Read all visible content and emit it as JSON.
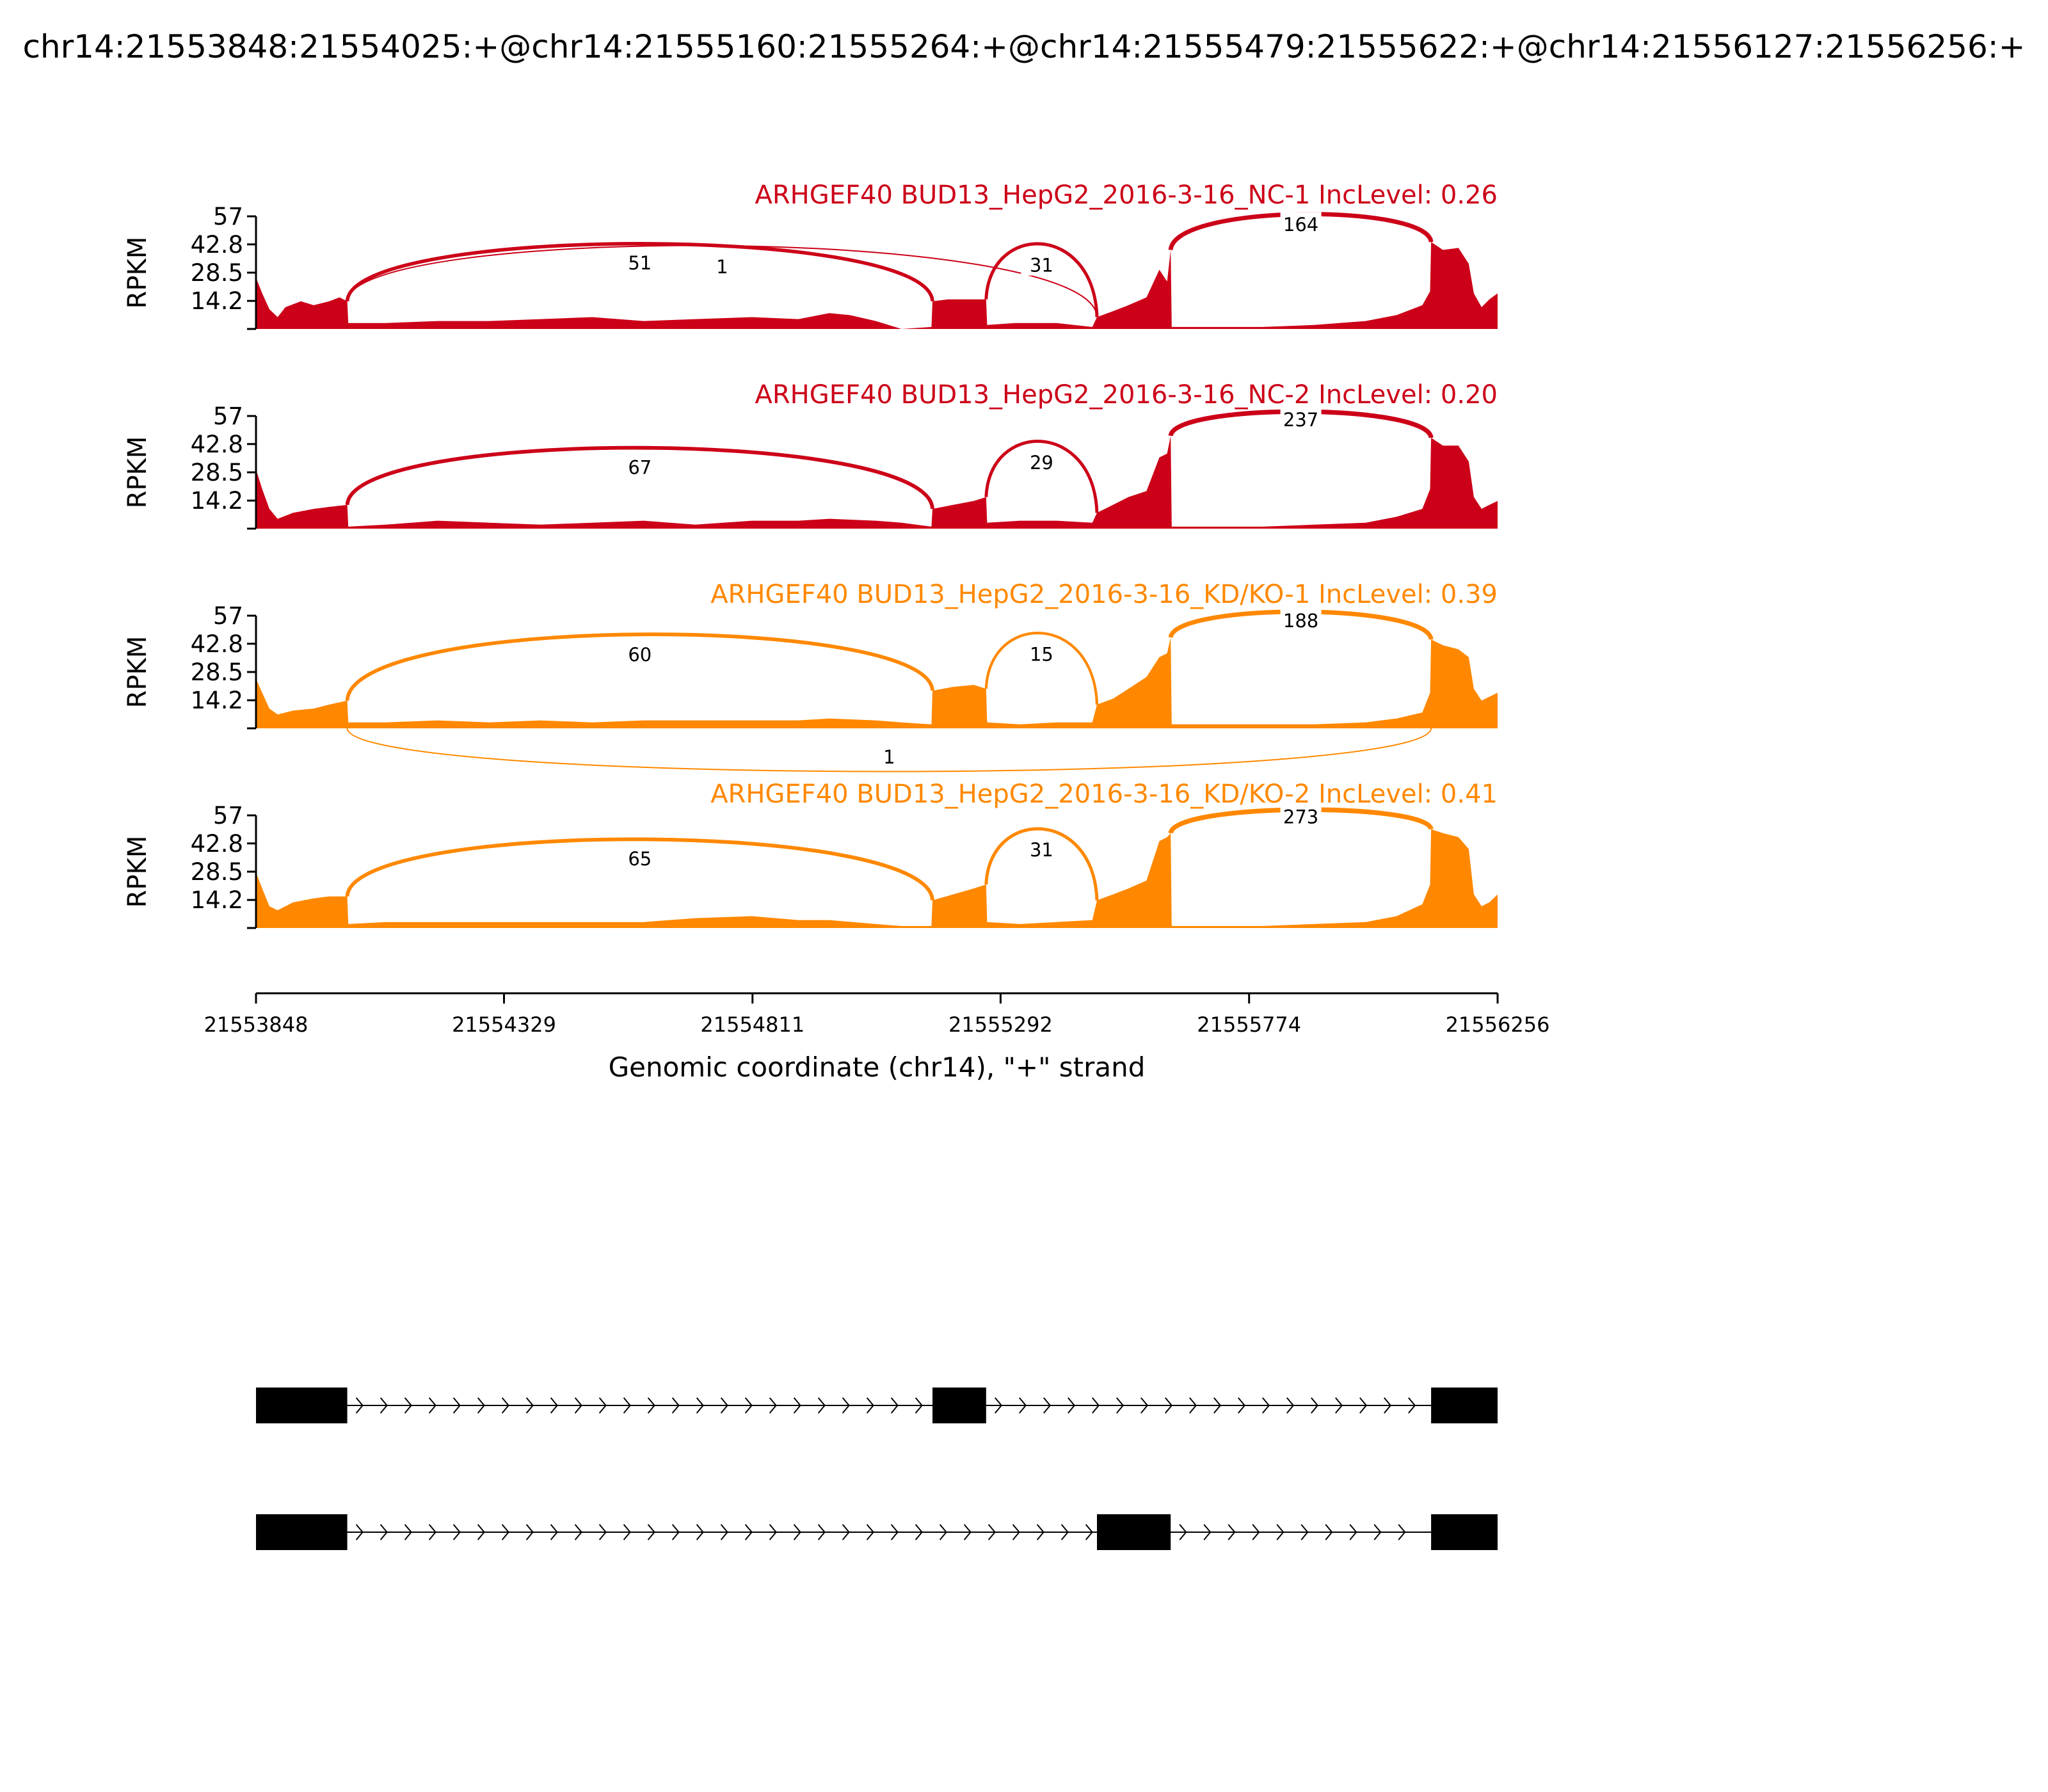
{
  "figure": {
    "title": "chr14:21553848:21554025:+@chr14:21555160:21555264:+@chr14:21555479:21555622:+@chr14:21556127:21556256:+",
    "xlabel": "Genomic coordinate (chr14), \"+\" strand"
  },
  "colors": {
    "nc": "#cc0018",
    "kd": "#ff8800",
    "axis": "#000000",
    "exon": "#000000"
  },
  "chart_data": {
    "type": "area",
    "chart_kind": "sashimi",
    "x_range": [
      21553848,
      21556256
    ],
    "x_ticks": [
      21553848,
      21554329,
      21554811,
      21555292,
      21555774,
      21556256
    ],
    "x_tick_labels": [
      "21553848",
      "21554329",
      "21554811",
      "21555292",
      "21555774",
      "21556256"
    ],
    "y_range": [
      0,
      57
    ],
    "y_ticks": [
      14.2,
      28.5,
      42.8,
      57
    ],
    "y_tick_labels": [
      "14.2",
      "28.5",
      "42.8",
      "57"
    ],
    "ylabel": "RPKM",
    "panels": [
      {
        "title": "ARHGEF40 BUD13_HepG2_2016-3-16_NC-1 IncLevel: 0.26",
        "group": "nc",
        "coverage": [
          [
            21553848,
            26
          ],
          [
            21553860,
            18
          ],
          [
            21553874,
            10
          ],
          [
            21553890,
            6
          ],
          [
            21553905,
            11
          ],
          [
            21553935,
            14
          ],
          [
            21553960,
            12
          ],
          [
            21553990,
            14
          ],
          [
            21554010,
            16
          ],
          [
            21554025,
            14
          ],
          [
            21554027,
            3
          ],
          [
            21554100,
            3
          ],
          [
            21554200,
            4
          ],
          [
            21554300,
            4
          ],
          [
            21554400,
            5
          ],
          [
            21554500,
            6
          ],
          [
            21554600,
            4
          ],
          [
            21554700,
            5
          ],
          [
            21554810,
            6
          ],
          [
            21554900,
            5
          ],
          [
            21554960,
            8
          ],
          [
            21555000,
            7
          ],
          [
            21555050,
            4
          ],
          [
            21555100,
            0
          ],
          [
            21555158,
            1
          ],
          [
            21555160,
            14
          ],
          [
            21555190,
            15
          ],
          [
            21555230,
            15
          ],
          [
            21555264,
            15
          ],
          [
            21555266,
            2
          ],
          [
            21555320,
            3
          ],
          [
            21555400,
            3
          ],
          [
            21555470,
            1
          ],
          [
            21555479,
            6
          ],
          [
            21555510,
            9
          ],
          [
            21555540,
            12
          ],
          [
            21555575,
            16
          ],
          [
            21555600,
            30
          ],
          [
            21555615,
            24
          ],
          [
            21555622,
            40
          ],
          [
            21555624,
            1
          ],
          [
            21555700,
            1
          ],
          [
            21555800,
            1
          ],
          [
            21555900,
            2
          ],
          [
            21556000,
            4
          ],
          [
            21556060,
            7
          ],
          [
            21556110,
            12
          ],
          [
            21556125,
            19
          ],
          [
            21556127,
            44
          ],
          [
            21556150,
            40
          ],
          [
            21556180,
            41
          ],
          [
            21556200,
            33
          ],
          [
            21556210,
            18
          ],
          [
            21556225,
            11
          ],
          [
            21556240,
            15
          ],
          [
            21556256,
            18
          ]
        ],
        "junctions": [
          {
            "start": 21554025,
            "end": 21555160,
            "count": 51,
            "above": true
          },
          {
            "start": 21554025,
            "end": 21555479,
            "count": 1,
            "above": true
          },
          {
            "start": 21555264,
            "end": 21555479,
            "count": 31,
            "above": true
          },
          {
            "start": 21555622,
            "end": 21556127,
            "count": 164,
            "above": true
          }
        ]
      },
      {
        "title": "ARHGEF40 BUD13_HepG2_2016-3-16_NC-2 IncLevel: 0.20",
        "group": "nc",
        "coverage": [
          [
            21553848,
            30
          ],
          [
            21553860,
            20
          ],
          [
            21553874,
            10
          ],
          [
            21553890,
            5
          ],
          [
            21553920,
            8
          ],
          [
            21553960,
            10
          ],
          [
            21553990,
            11
          ],
          [
            21554025,
            12
          ],
          [
            21554027,
            1
          ],
          [
            21554100,
            2
          ],
          [
            21554200,
            4
          ],
          [
            21554300,
            3
          ],
          [
            21554400,
            2
          ],
          [
            21554500,
            3
          ],
          [
            21554600,
            4
          ],
          [
            21554700,
            2
          ],
          [
            21554810,
            4
          ],
          [
            21554900,
            4
          ],
          [
            21554960,
            5
          ],
          [
            21555050,
            4
          ],
          [
            21555100,
            3
          ],
          [
            21555158,
            1
          ],
          [
            21555160,
            10
          ],
          [
            21555200,
            12
          ],
          [
            21555240,
            14
          ],
          [
            21555264,
            16
          ],
          [
            21555266,
            3
          ],
          [
            21555330,
            4
          ],
          [
            21555400,
            4
          ],
          [
            21555470,
            3
          ],
          [
            21555479,
            8
          ],
          [
            21555510,
            12
          ],
          [
            21555540,
            16
          ],
          [
            21555575,
            19
          ],
          [
            21555600,
            36
          ],
          [
            21555615,
            38
          ],
          [
            21555622,
            47
          ],
          [
            21555624,
            1
          ],
          [
            21555700,
            1
          ],
          [
            21555800,
            1
          ],
          [
            21555900,
            2
          ],
          [
            21556000,
            3
          ],
          [
            21556060,
            6
          ],
          [
            21556110,
            10
          ],
          [
            21556125,
            20
          ],
          [
            21556127,
            46
          ],
          [
            21556150,
            42
          ],
          [
            21556180,
            42
          ],
          [
            21556200,
            34
          ],
          [
            21556210,
            16
          ],
          [
            21556225,
            10
          ],
          [
            21556240,
            12
          ],
          [
            21556256,
            14
          ]
        ],
        "junctions": [
          {
            "start": 21554025,
            "end": 21555160,
            "count": 67,
            "above": true
          },
          {
            "start": 21555264,
            "end": 21555479,
            "count": 29,
            "above": true
          },
          {
            "start": 21555622,
            "end": 21556127,
            "count": 237,
            "above": true
          }
        ]
      },
      {
        "title": "ARHGEF40 BUD13_HepG2_2016-3-16_KD/KO-1 IncLevel: 0.39",
        "group": "kd",
        "coverage": [
          [
            21553848,
            25
          ],
          [
            21553860,
            18
          ],
          [
            21553874,
            10
          ],
          [
            21553890,
            7
          ],
          [
            21553920,
            9
          ],
          [
            21553960,
            10
          ],
          [
            21553990,
            12
          ],
          [
            21554025,
            14
          ],
          [
            21554027,
            3
          ],
          [
            21554100,
            3
          ],
          [
            21554200,
            4
          ],
          [
            21554300,
            3
          ],
          [
            21554400,
            4
          ],
          [
            21554500,
            3
          ],
          [
            21554600,
            4
          ],
          [
            21554700,
            4
          ],
          [
            21554810,
            4
          ],
          [
            21554900,
            4
          ],
          [
            21554960,
            5
          ],
          [
            21555050,
            4
          ],
          [
            21555100,
            3
          ],
          [
            21555158,
            2
          ],
          [
            21555160,
            19
          ],
          [
            21555200,
            21
          ],
          [
            21555240,
            22
          ],
          [
            21555264,
            20
          ],
          [
            21555266,
            3
          ],
          [
            21555330,
            2
          ],
          [
            21555400,
            3
          ],
          [
            21555470,
            3
          ],
          [
            21555479,
            12
          ],
          [
            21555510,
            15
          ],
          [
            21555540,
            20
          ],
          [
            21555575,
            26
          ],
          [
            21555600,
            36
          ],
          [
            21555615,
            38
          ],
          [
            21555622,
            46
          ],
          [
            21555624,
            2
          ],
          [
            21555700,
            2
          ],
          [
            21555800,
            2
          ],
          [
            21555900,
            2
          ],
          [
            21556000,
            3
          ],
          [
            21556060,
            5
          ],
          [
            21556110,
            8
          ],
          [
            21556125,
            18
          ],
          [
            21556127,
            45
          ],
          [
            21556150,
            42
          ],
          [
            21556180,
            40
          ],
          [
            21556200,
            36
          ],
          [
            21556210,
            20
          ],
          [
            21556225,
            14
          ],
          [
            21556240,
            16
          ],
          [
            21556256,
            18
          ]
        ],
        "junctions": [
          {
            "start": 21554025,
            "end": 21555160,
            "count": 60,
            "above": true
          },
          {
            "start": 21554025,
            "end": 21556127,
            "count": 1,
            "above": false
          },
          {
            "start": 21555264,
            "end": 21555479,
            "count": 15,
            "above": true
          },
          {
            "start": 21555622,
            "end": 21556127,
            "count": 188,
            "above": true
          }
        ]
      },
      {
        "title": "ARHGEF40 BUD13_HepG2_2016-3-16_KD/KO-2 IncLevel: 0.41",
        "group": "kd",
        "coverage": [
          [
            21553848,
            28
          ],
          [
            21553860,
            20
          ],
          [
            21553874,
            11
          ],
          [
            21553890,
            9
          ],
          [
            21553920,
            13
          ],
          [
            21553960,
            15
          ],
          [
            21553990,
            16
          ],
          [
            21554025,
            16
          ],
          [
            21554027,
            2
          ],
          [
            21554100,
            3
          ],
          [
            21554200,
            3
          ],
          [
            21554300,
            3
          ],
          [
            21554400,
            3
          ],
          [
            21554500,
            3
          ],
          [
            21554600,
            3
          ],
          [
            21554700,
            5
          ],
          [
            21554810,
            6
          ],
          [
            21554900,
            4
          ],
          [
            21554960,
            4
          ],
          [
            21555050,
            2
          ],
          [
            21555100,
            1
          ],
          [
            21555158,
            1
          ],
          [
            21555160,
            14
          ],
          [
            21555200,
            17
          ],
          [
            21555240,
            20
          ],
          [
            21555264,
            22
          ],
          [
            21555266,
            3
          ],
          [
            21555330,
            2
          ],
          [
            21555400,
            3
          ],
          [
            21555470,
            4
          ],
          [
            21555479,
            14
          ],
          [
            21555510,
            17
          ],
          [
            21555540,
            20
          ],
          [
            21555575,
            24
          ],
          [
            21555600,
            44
          ],
          [
            21555615,
            46
          ],
          [
            21555622,
            48
          ],
          [
            21555624,
            1
          ],
          [
            21555700,
            1
          ],
          [
            21555800,
            1
          ],
          [
            21555900,
            2
          ],
          [
            21556000,
            3
          ],
          [
            21556060,
            6
          ],
          [
            21556110,
            12
          ],
          [
            21556125,
            22
          ],
          [
            21556127,
            50
          ],
          [
            21556150,
            48
          ],
          [
            21556180,
            46
          ],
          [
            21556200,
            40
          ],
          [
            21556210,
            17
          ],
          [
            21556225,
            11
          ],
          [
            21556240,
            13
          ],
          [
            21556256,
            17
          ]
        ],
        "junctions": [
          {
            "start": 21554025,
            "end": 21555160,
            "count": 65,
            "above": true
          },
          {
            "start": 21555264,
            "end": 21555479,
            "count": 31,
            "above": true
          },
          {
            "start": 21555622,
            "end": 21556127,
            "count": 273,
            "above": true
          }
        ]
      }
    ],
    "isoforms": [
      {
        "exons": [
          [
            21553848,
            21554025
          ],
          [
            21555160,
            21555264
          ],
          [
            21556127,
            21556256
          ]
        ]
      },
      {
        "exons": [
          [
            21553848,
            21554025
          ],
          [
            21555479,
            21555622
          ],
          [
            21556127,
            21556256
          ]
        ]
      }
    ]
  }
}
